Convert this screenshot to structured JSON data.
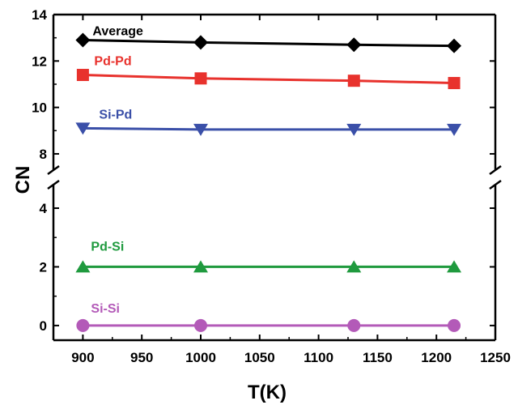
{
  "chart_data": {
    "type": "line",
    "xlabel": "T(K)",
    "ylabel": "CN",
    "x": [
      900,
      1000,
      1130,
      1215
    ],
    "xlim": [
      875,
      1250
    ],
    "x_ticks": [
      "900",
      "950",
      "1000",
      "1050",
      "1100",
      "1150",
      "1200",
      "1250"
    ],
    "y_ticks_lower": [
      "0",
      "2",
      "4"
    ],
    "y_ticks_upper": [
      "8",
      "10",
      "12",
      "14"
    ],
    "axis_break": {
      "between": [
        4.8,
        7.3
      ]
    },
    "lower_ylim": [
      -0.5,
      4.8
    ],
    "upper_ylim": [
      7.3,
      14
    ],
    "grid": false,
    "series": [
      {
        "name": "Average",
        "values": [
          12.9,
          12.8,
          12.7,
          12.65
        ],
        "color": "#000000",
        "marker": "diamond"
      },
      {
        "name": "Pd-Pd",
        "values": [
          11.4,
          11.25,
          11.15,
          11.05
        ],
        "color": "#e8322d",
        "marker": "square"
      },
      {
        "name": "Si-Pd",
        "values": [
          9.1,
          9.05,
          9.05,
          9.05
        ],
        "color": "#3a4fa8",
        "marker": "triangle-down"
      },
      {
        "name": "Pd-Si",
        "values": [
          2.0,
          2.0,
          2.0,
          2.0
        ],
        "color": "#1f9a3e",
        "marker": "triangle-up"
      },
      {
        "name": "Si-Si",
        "values": [
          0.0,
          0.0,
          0.0,
          0.0
        ],
        "color": "#b35ab8",
        "marker": "circle"
      }
    ]
  }
}
